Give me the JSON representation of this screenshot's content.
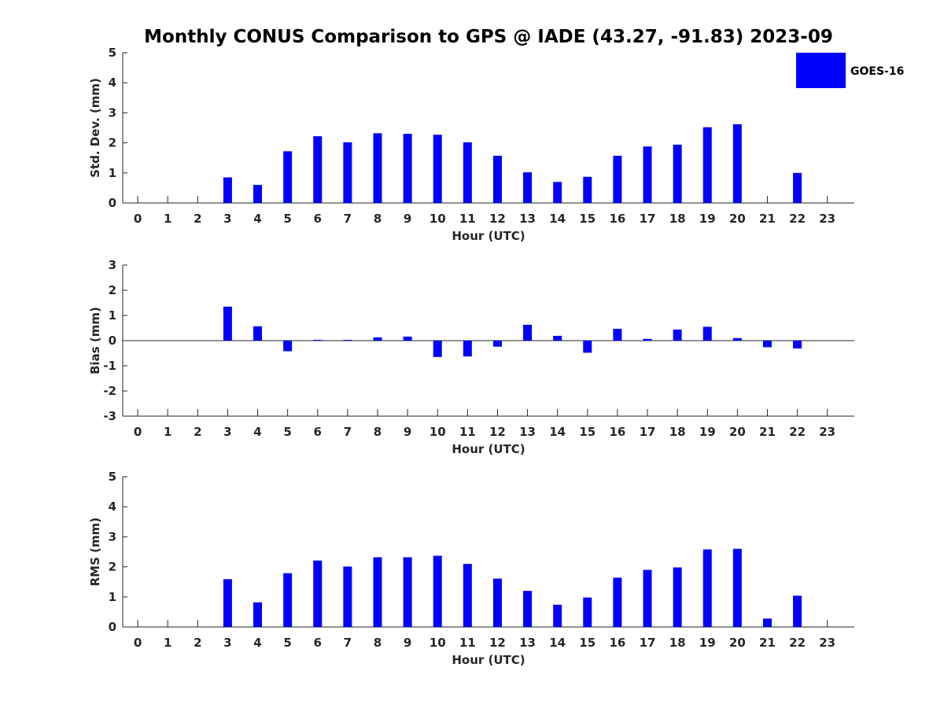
{
  "title": "Monthly CONUS Comparison to GPS @ IADE (43.27, -91.83) 2023-09",
  "legend": {
    "label": "GOES-16",
    "color": "#0000ff"
  },
  "chart_data": [
    {
      "type": "bar",
      "ylabel": "Std. Dev. (mm)",
      "xlabel": "Hour (UTC)",
      "ylim": [
        0,
        5
      ],
      "yticks": [
        "0",
        "1",
        "2",
        "3",
        "4",
        "5"
      ],
      "categories": [
        "0",
        "1",
        "2",
        "3",
        "4",
        "5",
        "6",
        "7",
        "8",
        "9",
        "10",
        "11",
        "12",
        "13",
        "14",
        "15",
        "16",
        "17",
        "18",
        "19",
        "20",
        "21",
        "22",
        "23"
      ],
      "series": [
        {
          "name": "GOES-16",
          "color": "#0000ff",
          "values": [
            null,
            null,
            null,
            0.85,
            0.6,
            1.72,
            2.22,
            2.02,
            2.32,
            2.3,
            2.27,
            2.02,
            1.57,
            1.02,
            0.7,
            0.87,
            1.57,
            1.88,
            1.94,
            2.52,
            2.62,
            null,
            1.0,
            null
          ]
        }
      ],
      "legend": "top-right"
    },
    {
      "type": "bar",
      "ylabel": "Bias (mm)",
      "xlabel": "Hour (UTC)",
      "ylim": [
        -3,
        3
      ],
      "yticks": [
        "-3",
        "-2",
        "-1",
        "0",
        "1",
        "2",
        "3"
      ],
      "categories": [
        "0",
        "1",
        "2",
        "3",
        "4",
        "5",
        "6",
        "7",
        "8",
        "9",
        "10",
        "11",
        "12",
        "13",
        "14",
        "15",
        "16",
        "17",
        "18",
        "19",
        "20",
        "21",
        "22",
        "23"
      ],
      "series": [
        {
          "name": "GOES-16",
          "color": "#0000ff",
          "values": [
            null,
            null,
            null,
            1.35,
            0.57,
            -0.42,
            0.03,
            0.03,
            0.13,
            0.16,
            -0.65,
            -0.63,
            -0.24,
            0.63,
            0.19,
            -0.48,
            0.47,
            0.07,
            0.44,
            0.55,
            0.1,
            -0.26,
            -0.31,
            null
          ]
        }
      ]
    },
    {
      "type": "bar",
      "ylabel": "RMS (mm)",
      "xlabel": "Hour (UTC)",
      "ylim": [
        0,
        5
      ],
      "yticks": [
        "0",
        "1",
        "2",
        "3",
        "4",
        "5"
      ],
      "categories": [
        "0",
        "1",
        "2",
        "3",
        "4",
        "5",
        "6",
        "7",
        "8",
        "9",
        "10",
        "11",
        "12",
        "13",
        "14",
        "15",
        "16",
        "17",
        "18",
        "19",
        "20",
        "21",
        "22",
        "23"
      ],
      "series": [
        {
          "name": "GOES-16",
          "color": "#0000ff",
          "values": [
            null,
            null,
            null,
            1.59,
            0.82,
            1.79,
            2.21,
            2.01,
            2.32,
            2.32,
            2.37,
            2.1,
            1.61,
            1.2,
            0.74,
            0.98,
            1.64,
            1.9,
            1.98,
            2.58,
            2.6,
            0.28,
            1.04,
            null
          ]
        }
      ]
    }
  ]
}
